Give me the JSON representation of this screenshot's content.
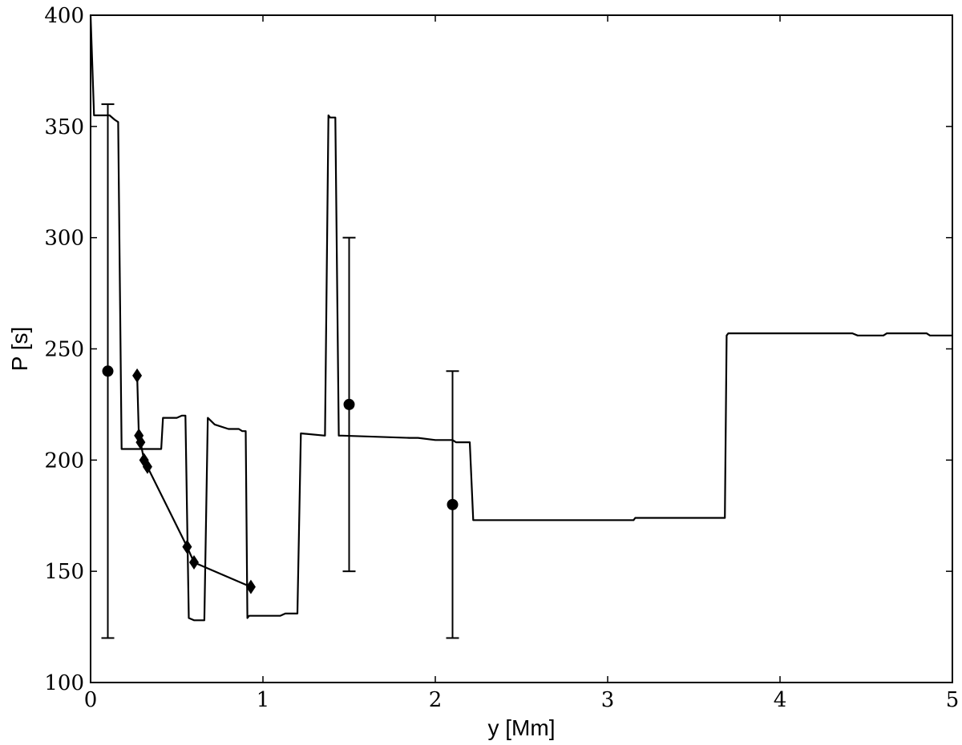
{
  "chart_data": {
    "type": "line",
    "title": "",
    "xlabel": "y [Mm]",
    "ylabel": "P [s]",
    "xlim": [
      0,
      5
    ],
    "ylim": [
      100,
      400
    ],
    "xticks": [
      0,
      1,
      2,
      3,
      4,
      5
    ],
    "xtick_labels": [
      "0",
      "1",
      "2",
      "3",
      "4",
      "5"
    ],
    "yticks": [
      100,
      150,
      200,
      250,
      300,
      350,
      400
    ],
    "ytick_labels": [
      "100",
      "150",
      "200",
      "250",
      "300",
      "350",
      "400"
    ],
    "grid": false,
    "legend": "none",
    "color": "#000000",
    "series": [
      {
        "kind": "line",
        "x": [
          0.0,
          0.02,
          0.11,
          0.14,
          0.16,
          0.18,
          0.2,
          0.41,
          0.42,
          0.5,
          0.53,
          0.55,
          0.57,
          0.6,
          0.66,
          0.68,
          0.72,
          0.8,
          0.86,
          0.88,
          0.9,
          0.91,
          0.92,
          0.93,
          1.1,
          1.13,
          1.2,
          1.22,
          1.36,
          1.38,
          1.39,
          1.42,
          1.44,
          1.46,
          1.85,
          1.9,
          2.0,
          2.05,
          2.07,
          2.1,
          2.12,
          2.2,
          2.22,
          2.95,
          2.98,
          3.15,
          3.16,
          3.68,
          3.69,
          3.7,
          4.42,
          4.45,
          4.6,
          4.62,
          4.85,
          4.87,
          5.0
        ],
        "y": [
          400,
          355,
          355,
          353,
          352,
          205,
          205,
          205,
          219,
          219,
          220,
          220,
          129,
          128,
          128,
          219,
          216,
          214,
          214,
          213,
          213,
          129,
          130,
          130,
          130,
          131,
          131,
          212,
          211,
          355,
          354,
          354,
          211,
          211,
          210,
          210,
          209,
          209,
          209,
          209,
          208,
          208,
          173,
          173,
          173,
          173,
          174,
          174,
          256,
          257,
          257,
          256,
          256,
          257,
          257,
          256,
          256
        ]
      },
      {
        "kind": "line-diamond",
        "x": [
          0.27,
          0.28,
          0.29,
          0.31,
          0.33,
          0.56,
          0.6,
          0.93
        ],
        "y": [
          238,
          211,
          208,
          200,
          197,
          161,
          154,
          143
        ]
      },
      {
        "kind": "points-errorbars",
        "x": [
          0.1,
          1.5,
          2.1
        ],
        "y": [
          240,
          225,
          180
        ],
        "yerr_low": [
          120,
          150,
          120
        ],
        "yerr_high": [
          360,
          300,
          240
        ]
      }
    ]
  }
}
